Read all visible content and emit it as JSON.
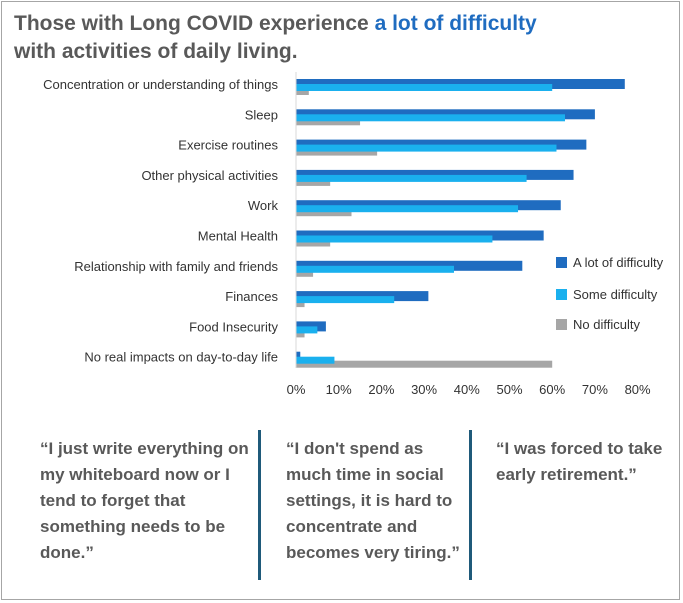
{
  "title": {
    "part1": "Those with Long COVID experience ",
    "accent": "a lot of difficulty",
    "part2": "with activities of daily living."
  },
  "colors": {
    "a_lot": "#1f6cc0",
    "some": "#1ab0ee",
    "none": "#a6a6a6",
    "divider": "#1f5a7a"
  },
  "chart_data": {
    "type": "bar",
    "orientation": "horizontal",
    "categories": [
      "Concentration or understanding of things",
      "Sleep",
      "Exercise routines",
      "Other physical activities",
      "Work",
      "Mental Health",
      "Relationship with family and friends",
      "Finances",
      "Food Insecurity",
      "No real impacts on day-to-day life"
    ],
    "series": [
      {
        "name": "A lot of difficulty",
        "values": [
          77,
          70,
          68,
          65,
          62,
          58,
          53,
          31,
          7,
          1
        ]
      },
      {
        "name": "Some difficulty",
        "values": [
          60,
          63,
          61,
          54,
          52,
          46,
          37,
          23,
          5,
          9
        ]
      },
      {
        "name": "No difficulty",
        "values": [
          3,
          15,
          19,
          8,
          13,
          8,
          4,
          2,
          2,
          60
        ]
      }
    ],
    "xlim": [
      0,
      80
    ],
    "xticks": [
      "0%",
      "10%",
      "20%",
      "30%",
      "40%",
      "50%",
      "60%",
      "70%",
      "80%"
    ],
    "legend_position": "right"
  },
  "quotes": [
    {
      "lines": [
        "“I just write everything on",
        "my whiteboard now or I",
        "tend to forget that",
        "something needs to be",
        "done.”"
      ]
    },
    {
      "lines": [
        "“I don't spend as",
        "much time in social",
        "settings, it is hard to",
        "concentrate and",
        "becomes very tiring.”"
      ]
    },
    {
      "lines": [
        "“I was forced to take",
        "early retirement.”"
      ]
    }
  ]
}
